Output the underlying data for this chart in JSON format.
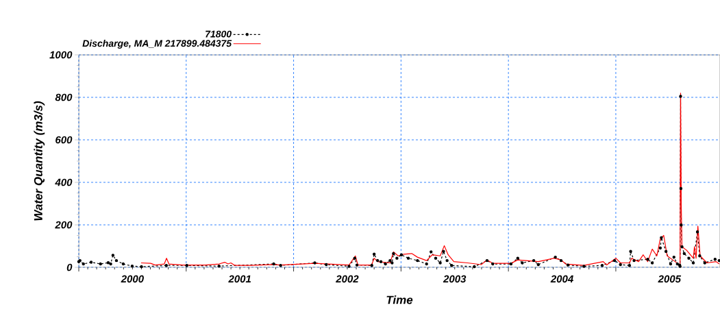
{
  "chart_data": {
    "type": "line",
    "xlabel": "Time",
    "ylabel": "Water Quantity (m3/s)",
    "xlim": [
      2000,
      2005.97
    ],
    "ylim": [
      0,
      1000
    ],
    "xticks": [
      {
        "value": 2000,
        "label": null
      },
      {
        "value": 2000.5,
        "label": "2000"
      },
      {
        "value": 2001,
        "label": null
      },
      {
        "value": 2001.5,
        "label": "2001"
      },
      {
        "value": 2002,
        "label": null
      },
      {
        "value": 2002.5,
        "label": "2002"
      },
      {
        "value": 2003,
        "label": null
      },
      {
        "value": 2003.5,
        "label": "2003"
      },
      {
        "value": 2004,
        "label": null
      },
      {
        "value": 2004.5,
        "label": "2004"
      },
      {
        "value": 2005,
        "label": null
      },
      {
        "value": 2005.5,
        "label": "2005"
      }
    ],
    "yticks": [
      0,
      200,
      400,
      600,
      800,
      1000
    ],
    "grid": true,
    "legend": "top left",
    "series": [
      {
        "name": "71800",
        "color": "#000000",
        "marker": "circle",
        "line_style": "dashed",
        "x": [
          2000.0,
          2000.011,
          2000.043,
          2000.115,
          2000.202,
          2000.274,
          2000.297,
          2000.318,
          2000.35,
          2000.414,
          2000.497,
          2000.584,
          2000.815,
          2001.006,
          2001.306,
          2001.815,
          2001.879,
          2002.197,
          2002.304,
          2002.516,
          2002.569,
          2002.59,
          2002.728,
          2002.75,
          2002.782,
          2002.813,
          2002.855,
          2002.898,
          2002.917,
          2002.93,
          2002.962,
          2003.004,
          2003.068,
          2003.153,
          2003.238,
          2003.28,
          2003.323,
          2003.365,
          2003.396,
          2003.429,
          2003.471,
          2003.683,
          2003.801,
          2003.854,
          2004.024,
          2004.087,
          2004.129,
          2004.236,
          2004.278,
          2004.437,
          2004.49,
          2004.554,
          2004.703,
          2004.873,
          2004.989,
          2005.043,
          2005.127,
          2005.138,
          2005.17,
          2005.297,
          2005.339,
          2005.414,
          2005.424,
          2005.467,
          2005.51,
          2005.541,
          2005.573,
          2005.594,
          2005.598,
          2005.603,
          2005.606,
          2005.609,
          2005.616,
          2005.637,
          2005.68,
          2005.721,
          2005.76,
          2005.781,
          2005.828,
          2005.924,
          2005.962
        ],
        "values": [
          27,
          32,
          16,
          24,
          16,
          22,
          16,
          57,
          32,
          16,
          6,
          3,
          9,
          9,
          6,
          16,
          9,
          21,
          13,
          5,
          43,
          11,
          9,
          62,
          32,
          27,
          16,
          32,
          21,
          65,
          43,
          59,
          43,
          32,
          16,
          73,
          43,
          21,
          75,
          32,
          9,
          3,
          32,
          16,
          16,
          43,
          21,
          32,
          13,
          48,
          32,
          11,
          5,
          9,
          32,
          13,
          9,
          75,
          32,
          38,
          21,
          91,
          140,
          75,
          16,
          48,
          16,
          11,
          5,
          805,
          371,
          199,
          97,
          65,
          43,
          21,
          167,
          54,
          21,
          38,
          32
        ]
      },
      {
        "name": "Discharge, MA_M 217899.484375",
        "color": "#ff0000",
        "line_style": "solid",
        "x": [
          2000.58,
          2000.669,
          2000.711,
          2000.796,
          2000.817,
          2000.839,
          2000.966,
          2001.178,
          2001.306,
          2001.359,
          2001.389,
          2001.416,
          2001.454,
          2001.603,
          2001.815,
          2001.879,
          2002.197,
          2002.516,
          2002.575,
          2002.599,
          2002.726,
          2002.75,
          2002.782,
          2002.898,
          2002.93,
          2002.973,
          2003.025,
          2003.1,
          2003.153,
          2003.238,
          2003.291,
          2003.365,
          2003.403,
          2003.439,
          2003.492,
          2003.62,
          2003.747,
          2003.801,
          2003.854,
          2004.024,
          2004.087,
          2004.278,
          2004.427,
          2004.49,
          2004.533,
          2004.703,
          2004.883,
          2004.915,
          2005.0,
          2005.043,
          2005.127,
          2005.148,
          2005.212,
          2005.255,
          2005.297,
          2005.339,
          2005.382,
          2005.414,
          2005.446,
          2005.478,
          2005.552,
          2005.594,
          2005.598,
          2005.603,
          2005.609,
          2005.616,
          2005.658,
          2005.721,
          2005.732,
          2005.747,
          2005.764,
          2005.785,
          2005.849,
          2005.934,
          2005.962
        ],
        "values": [
          21,
          19,
          11,
          16,
          43,
          16,
          11,
          11,
          16,
          24,
          16,
          21,
          9,
          9,
          13,
          11,
          19,
          11,
          54,
          11,
          11,
          43,
          27,
          21,
          73,
          54,
          62,
          65,
          48,
          32,
          59,
          54,
          102,
          59,
          27,
          21,
          13,
          35,
          19,
          19,
          35,
          27,
          43,
          35,
          16,
          9,
          27,
          11,
          43,
          21,
          21,
          43,
          27,
          59,
          27,
          86,
          54,
          134,
          150,
          54,
          27,
          11,
          9,
          820,
          300,
          97,
          81,
          43,
          97,
          43,
          194,
          54,
          21,
          27,
          16
        ]
      }
    ]
  }
}
